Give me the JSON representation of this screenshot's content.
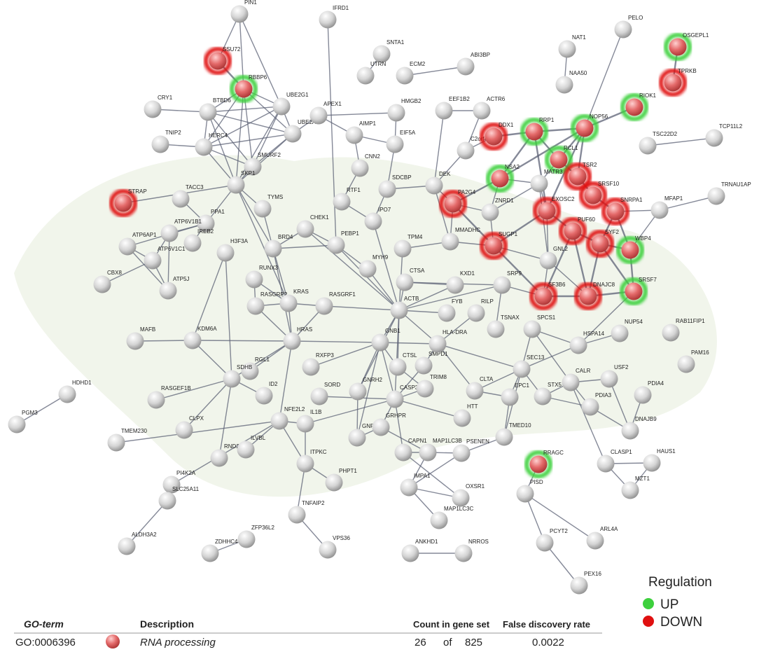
{
  "nodes": [
    "PIN1",
    "IFRD1",
    "SSU72",
    "RBBP6",
    "CRY1",
    "BTBD6",
    "UBE2G1",
    "TNIP2",
    "HERC4",
    "UBE2A",
    "SMURF2",
    "SKP1",
    "STRAP",
    "TACC3",
    "PPA1",
    "TYMS",
    "ATP6AP1",
    "ATP6V1B1",
    "ATP6V1C1",
    "IREB2",
    "ATP5J",
    "CBX8",
    "H3F3A",
    "BRD4",
    "RUNX3",
    "CHEK1",
    "PEBP1",
    "MAFB",
    "KDM6A",
    "RASGRP2",
    "KRAS",
    "RASGRF1",
    "RGL1",
    "HRAS",
    "SDHB",
    "HDHD1",
    "PGM3",
    "RASGEF1B",
    "ID2",
    "TMEM230",
    "CLPX",
    "RND2",
    "ILVBL",
    "NFE2L2",
    "IL1B",
    "PI4K2A",
    "ITPKC",
    "SLC25A11",
    "TNFAIP2",
    "ALDH3A2",
    "ZDHHC4",
    "ZFP36L2",
    "VPS36",
    "PHPT1",
    "RXFP3",
    "SORD",
    "GNRH2",
    "GNRH1",
    "GRHPR",
    "CASP3",
    "CAPN1",
    "MAP1LC3B",
    "IMPA1",
    "MAP1LC3C",
    "ANKHD1",
    "NRROS",
    "OXSR1",
    "PSENEN",
    "HTT",
    "TRIM8",
    "CLTA",
    "SMPD1",
    "CTSL",
    "GNB1",
    "HLA-DRA",
    "ACTB",
    "FYB",
    "RILP",
    "KXD1",
    "TSNAX",
    "SRP9",
    "CTSA",
    "MYH9",
    "TPM4",
    "IPO7",
    "SDCBP",
    "RTF1",
    "CNN2",
    "EIF5A",
    "AIMP1",
    "APEX1",
    "HMGB2",
    "SNTA1",
    "UTRN",
    "ECM2",
    "ABI3BP",
    "EEF1B2",
    "ACTR6",
    "C2orf47",
    "DEK",
    "PA2G4",
    "MMADHC",
    "ZNRD1",
    "NSA2",
    "DDX1",
    "RRP1",
    "NOP56",
    "RIOK1",
    "NAT1",
    "NAA50",
    "PELO",
    "OSGEPL1",
    "TPRKB",
    "TSC22D2",
    "TCP11L2",
    "TRNAU1AP",
    "MFAP1",
    "RCL1",
    "TSR2",
    "MATR3",
    "SRSF10",
    "EXOSC2",
    "SNRPA1",
    "PUF60",
    "SUGP1",
    "SYF2",
    "GNL2",
    "WBP4",
    "SF3B6",
    "DNAJC8",
    "SRSF7",
    "NUP54",
    "RAB11FIP1",
    "SPCS1",
    "HSPA14",
    "PAM16",
    "SEC13",
    "USF2",
    "CALR",
    "PDIA4",
    "EPC1",
    "STX5",
    "PDIA3",
    "DNAJB9",
    "TMED10",
    "CLASP1",
    "HAUS1",
    "MZT1",
    "RRAGC",
    "PISD",
    "ARL4A",
    "PCYT2",
    "PEX16"
  ],
  "legend": {
    "title": "Regulation",
    "items": [
      "UP",
      "DOWN"
    ]
  },
  "table": {
    "header": [
      "GO-term",
      "Description",
      "Count in gene set",
      "False discovery rate"
    ],
    "rows": [
      [
        "GO:0006396",
        "RNA processing",
        "26",
        "of",
        "825",
        "0.0022"
      ]
    ]
  }
}
